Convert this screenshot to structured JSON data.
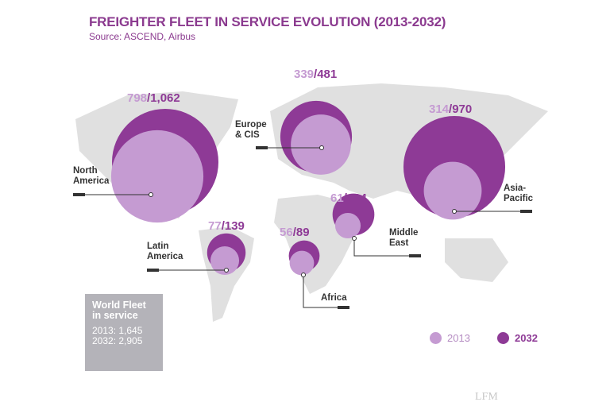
{
  "chart_data": {
    "type": "bubble-map",
    "title": "FREIGHTER FLEET IN SERVICE EVOLUTION (2013-2032)",
    "subtitle": "Source: ASCEND, Airbus",
    "legend": {
      "placement": "bottom-right",
      "entries": [
        "2013",
        "2032"
      ]
    },
    "colors": {
      "2013": "#c59bd2",
      "2032": "#8e3a96",
      "map": "#e0e0e0"
    },
    "regions": [
      {
        "name": "North America",
        "label_lines": [
          "North",
          "America"
        ],
        "v2013": 798,
        "v2032": 1062,
        "v2013_text": "798",
        "v2032_text": "1,062"
      },
      {
        "name": "Europe & CIS",
        "label_lines": [
          "Europe",
          "& CIS"
        ],
        "v2013": 339,
        "v2032": 481,
        "v2013_text": "339",
        "v2032_text": "481"
      },
      {
        "name": "Asia-Pacific",
        "label_lines": [
          "Asia-",
          "Pacific"
        ],
        "v2013": 314,
        "v2032": 970,
        "v2013_text": "314",
        "v2032_text": "970"
      },
      {
        "name": "Middle East",
        "label_lines": [
          "Middle",
          "East"
        ],
        "v2013": 61,
        "v2032": 164,
        "v2013_text": "61",
        "v2032_text": "164"
      },
      {
        "name": "Africa",
        "label_lines": [
          "Africa"
        ],
        "v2013": 56,
        "v2032": 89,
        "v2013_text": "56",
        "v2032_text": "89"
      },
      {
        "name": "Latin America",
        "label_lines": [
          "Latin",
          "America"
        ],
        "v2013": 77,
        "v2032": 139,
        "v2013_text": "77",
        "v2032_text": "139"
      }
    ]
  },
  "world_fleet": {
    "title_line1": "World Fleet",
    "title_line2": "in service",
    "line_2013": "2013: 1,645",
    "line_2032": "2032: 2,905"
  },
  "logo": "LFM"
}
